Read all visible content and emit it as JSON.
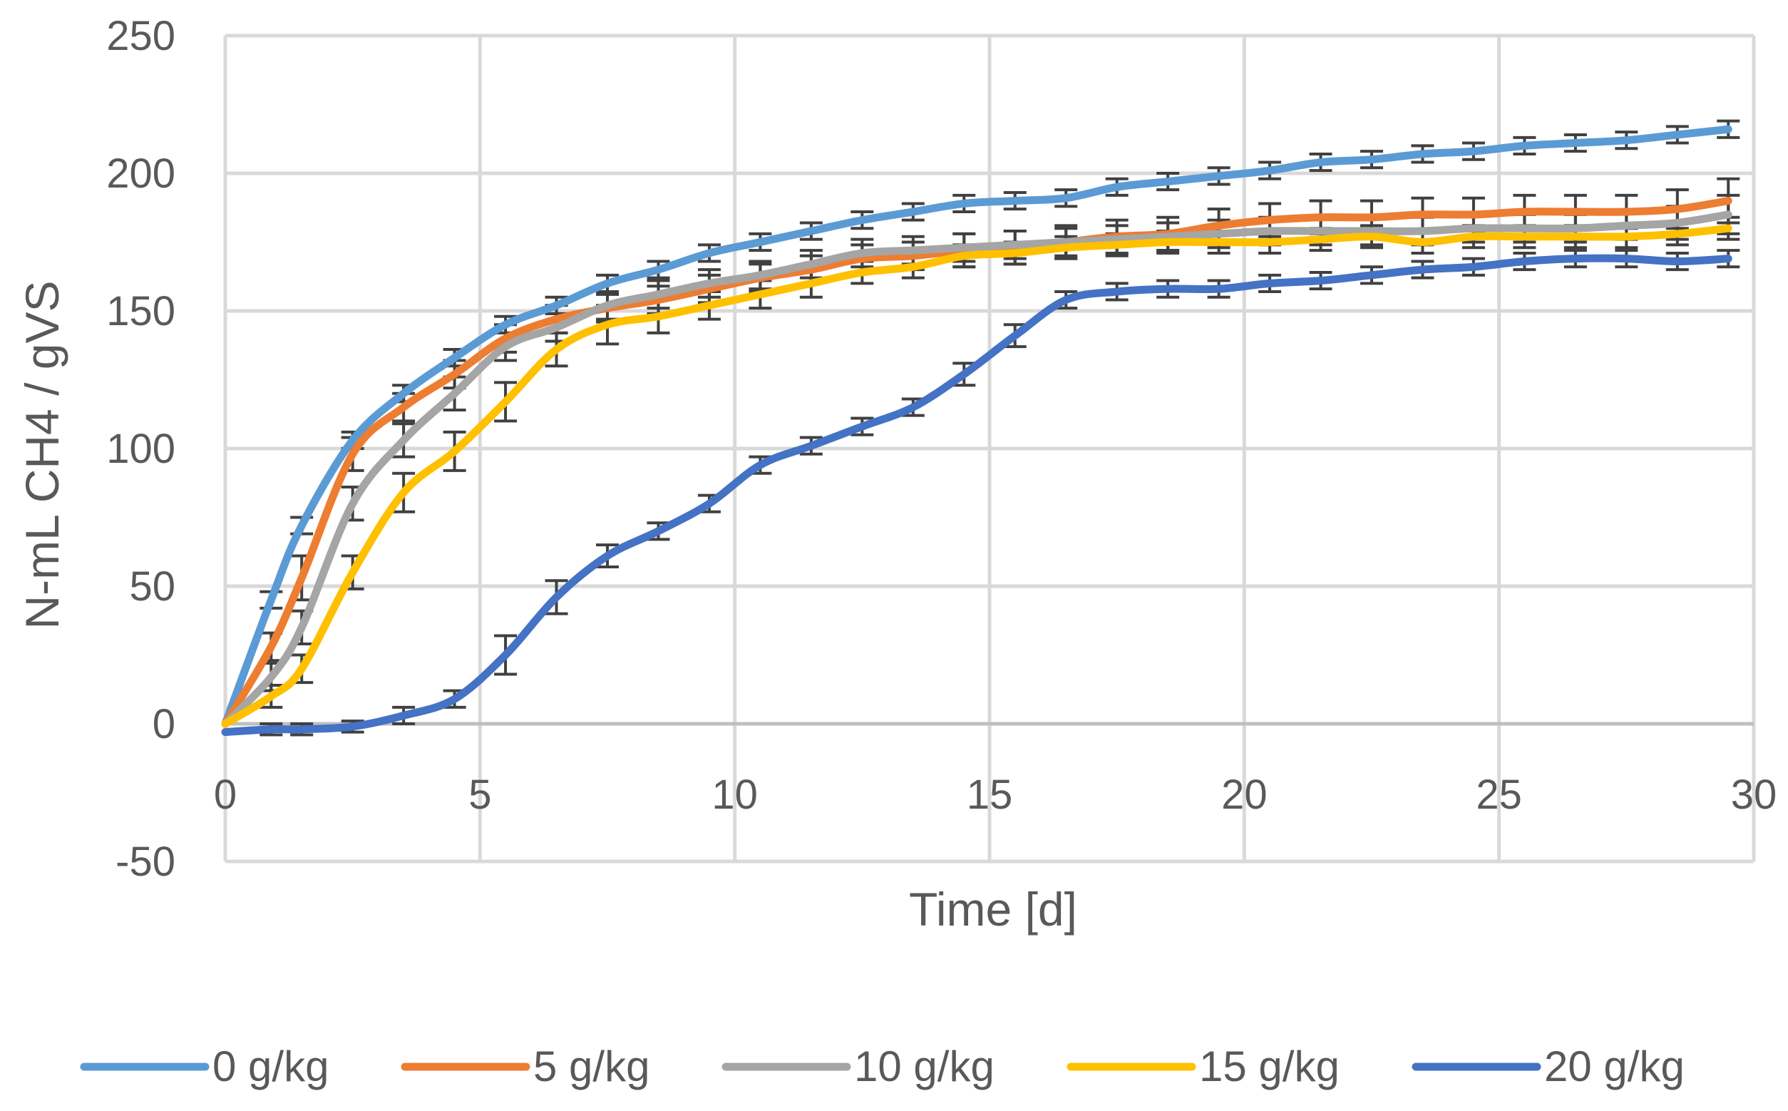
{
  "chart_data": {
    "type": "line",
    "title": "",
    "xlabel": "Time [d]",
    "ylabel": "N-mL CH4 / gVS",
    "xlim": [
      0,
      30
    ],
    "ylim": [
      -50,
      250
    ],
    "xticks": [
      0,
      5,
      10,
      15,
      20,
      25,
      30
    ],
    "yticks": [
      -50,
      0,
      50,
      100,
      150,
      200,
      250
    ],
    "grid": true,
    "legend_position": "bottom",
    "error_bars": true,
    "x": [
      0,
      0.9,
      1.5,
      2.5,
      3.5,
      4.5,
      5.5,
      6.5,
      7.5,
      8.5,
      9.5,
      10.5,
      11.5,
      12.5,
      13.5,
      14.5,
      15.5,
      16.5,
      17.5,
      18.5,
      19.5,
      20.5,
      21.5,
      22.5,
      23.5,
      24.5,
      25.5,
      26.5,
      27.5,
      28.5,
      29.5
    ],
    "series": [
      {
        "name": "0 g/kg",
        "color": "#5B9BD5",
        "values": [
          0,
          45,
          72,
          103,
          120,
          133,
          145,
          152,
          160,
          165,
          171,
          175,
          179,
          183,
          186,
          189,
          190,
          191,
          195,
          197,
          199,
          201,
          204,
          205,
          207,
          208,
          210,
          211,
          212,
          214,
          216
        ],
        "errors": [
          0,
          3,
          3,
          3,
          3,
          3,
          3,
          3,
          3,
          3,
          3,
          3,
          3,
          3,
          3,
          3,
          3,
          3,
          3,
          3,
          3,
          3,
          3,
          3,
          3,
          3,
          3,
          3,
          3,
          3,
          3
        ]
      },
      {
        "name": "5 g/kg",
        "color": "#ED7D31",
        "values": [
          0,
          28,
          53,
          98,
          115,
          127,
          140,
          147,
          151,
          154,
          158,
          162,
          165,
          169,
          170,
          172,
          173,
          175,
          177,
          178,
          181,
          183,
          184,
          184,
          185,
          185,
          186,
          186,
          186,
          187,
          190
        ],
        "errors": [
          0,
          5,
          8,
          6,
          5,
          5,
          5,
          5,
          5,
          5,
          5,
          5,
          5,
          5,
          5,
          6,
          6,
          6,
          6,
          6,
          6,
          6,
          6,
          6,
          6,
          6,
          6,
          6,
          6,
          7,
          8
        ]
      },
      {
        "name": "10 g/kg",
        "color": "#A5A5A5",
        "values": [
          0,
          17,
          35,
          80,
          103,
          120,
          137,
          144,
          152,
          156,
          160,
          163,
          167,
          171,
          172,
          173,
          174,
          175,
          176,
          177,
          178,
          179,
          179,
          179,
          179,
          180,
          180,
          180,
          181,
          182,
          185
        ],
        "errors": [
          0,
          5,
          6,
          6,
          6,
          6,
          5,
          5,
          5,
          5,
          5,
          5,
          5,
          5,
          5,
          5,
          5,
          5,
          5,
          5,
          5,
          5,
          5,
          5,
          5,
          5,
          5,
          5,
          5,
          6,
          7
        ]
      },
      {
        "name": "15 g/kg",
        "color": "#FFC000",
        "values": [
          0,
          10,
          20,
          55,
          84,
          99,
          117,
          136,
          145,
          148,
          152,
          156,
          160,
          164,
          166,
          170,
          171,
          173,
          174,
          175,
          175,
          175,
          176,
          177,
          175,
          177,
          177,
          177,
          177,
          178,
          180
        ],
        "errors": [
          0,
          4,
          5,
          6,
          7,
          7,
          7,
          6,
          7,
          6,
          5,
          5,
          5,
          4,
          4,
          4,
          4,
          4,
          4,
          4,
          4,
          4,
          4,
          4,
          4,
          4,
          4,
          4,
          4,
          4,
          4
        ]
      },
      {
        "name": "20 g/kg",
        "color": "#4472C4",
        "values": [
          -3,
          -2,
          -2,
          -1,
          3,
          9,
          25,
          46,
          61,
          70,
          80,
          94,
          101,
          108,
          115,
          127,
          141,
          154,
          157,
          158,
          158,
          160,
          161,
          163,
          165,
          166,
          168,
          169,
          169,
          168,
          169
        ],
        "errors": [
          0,
          2,
          2,
          2,
          3,
          3,
          7,
          6,
          4,
          3,
          3,
          3,
          3,
          3,
          3,
          4,
          4,
          3,
          3,
          3,
          3,
          3,
          3,
          3,
          3,
          3,
          3,
          3,
          3,
          3,
          3
        ]
      }
    ]
  }
}
